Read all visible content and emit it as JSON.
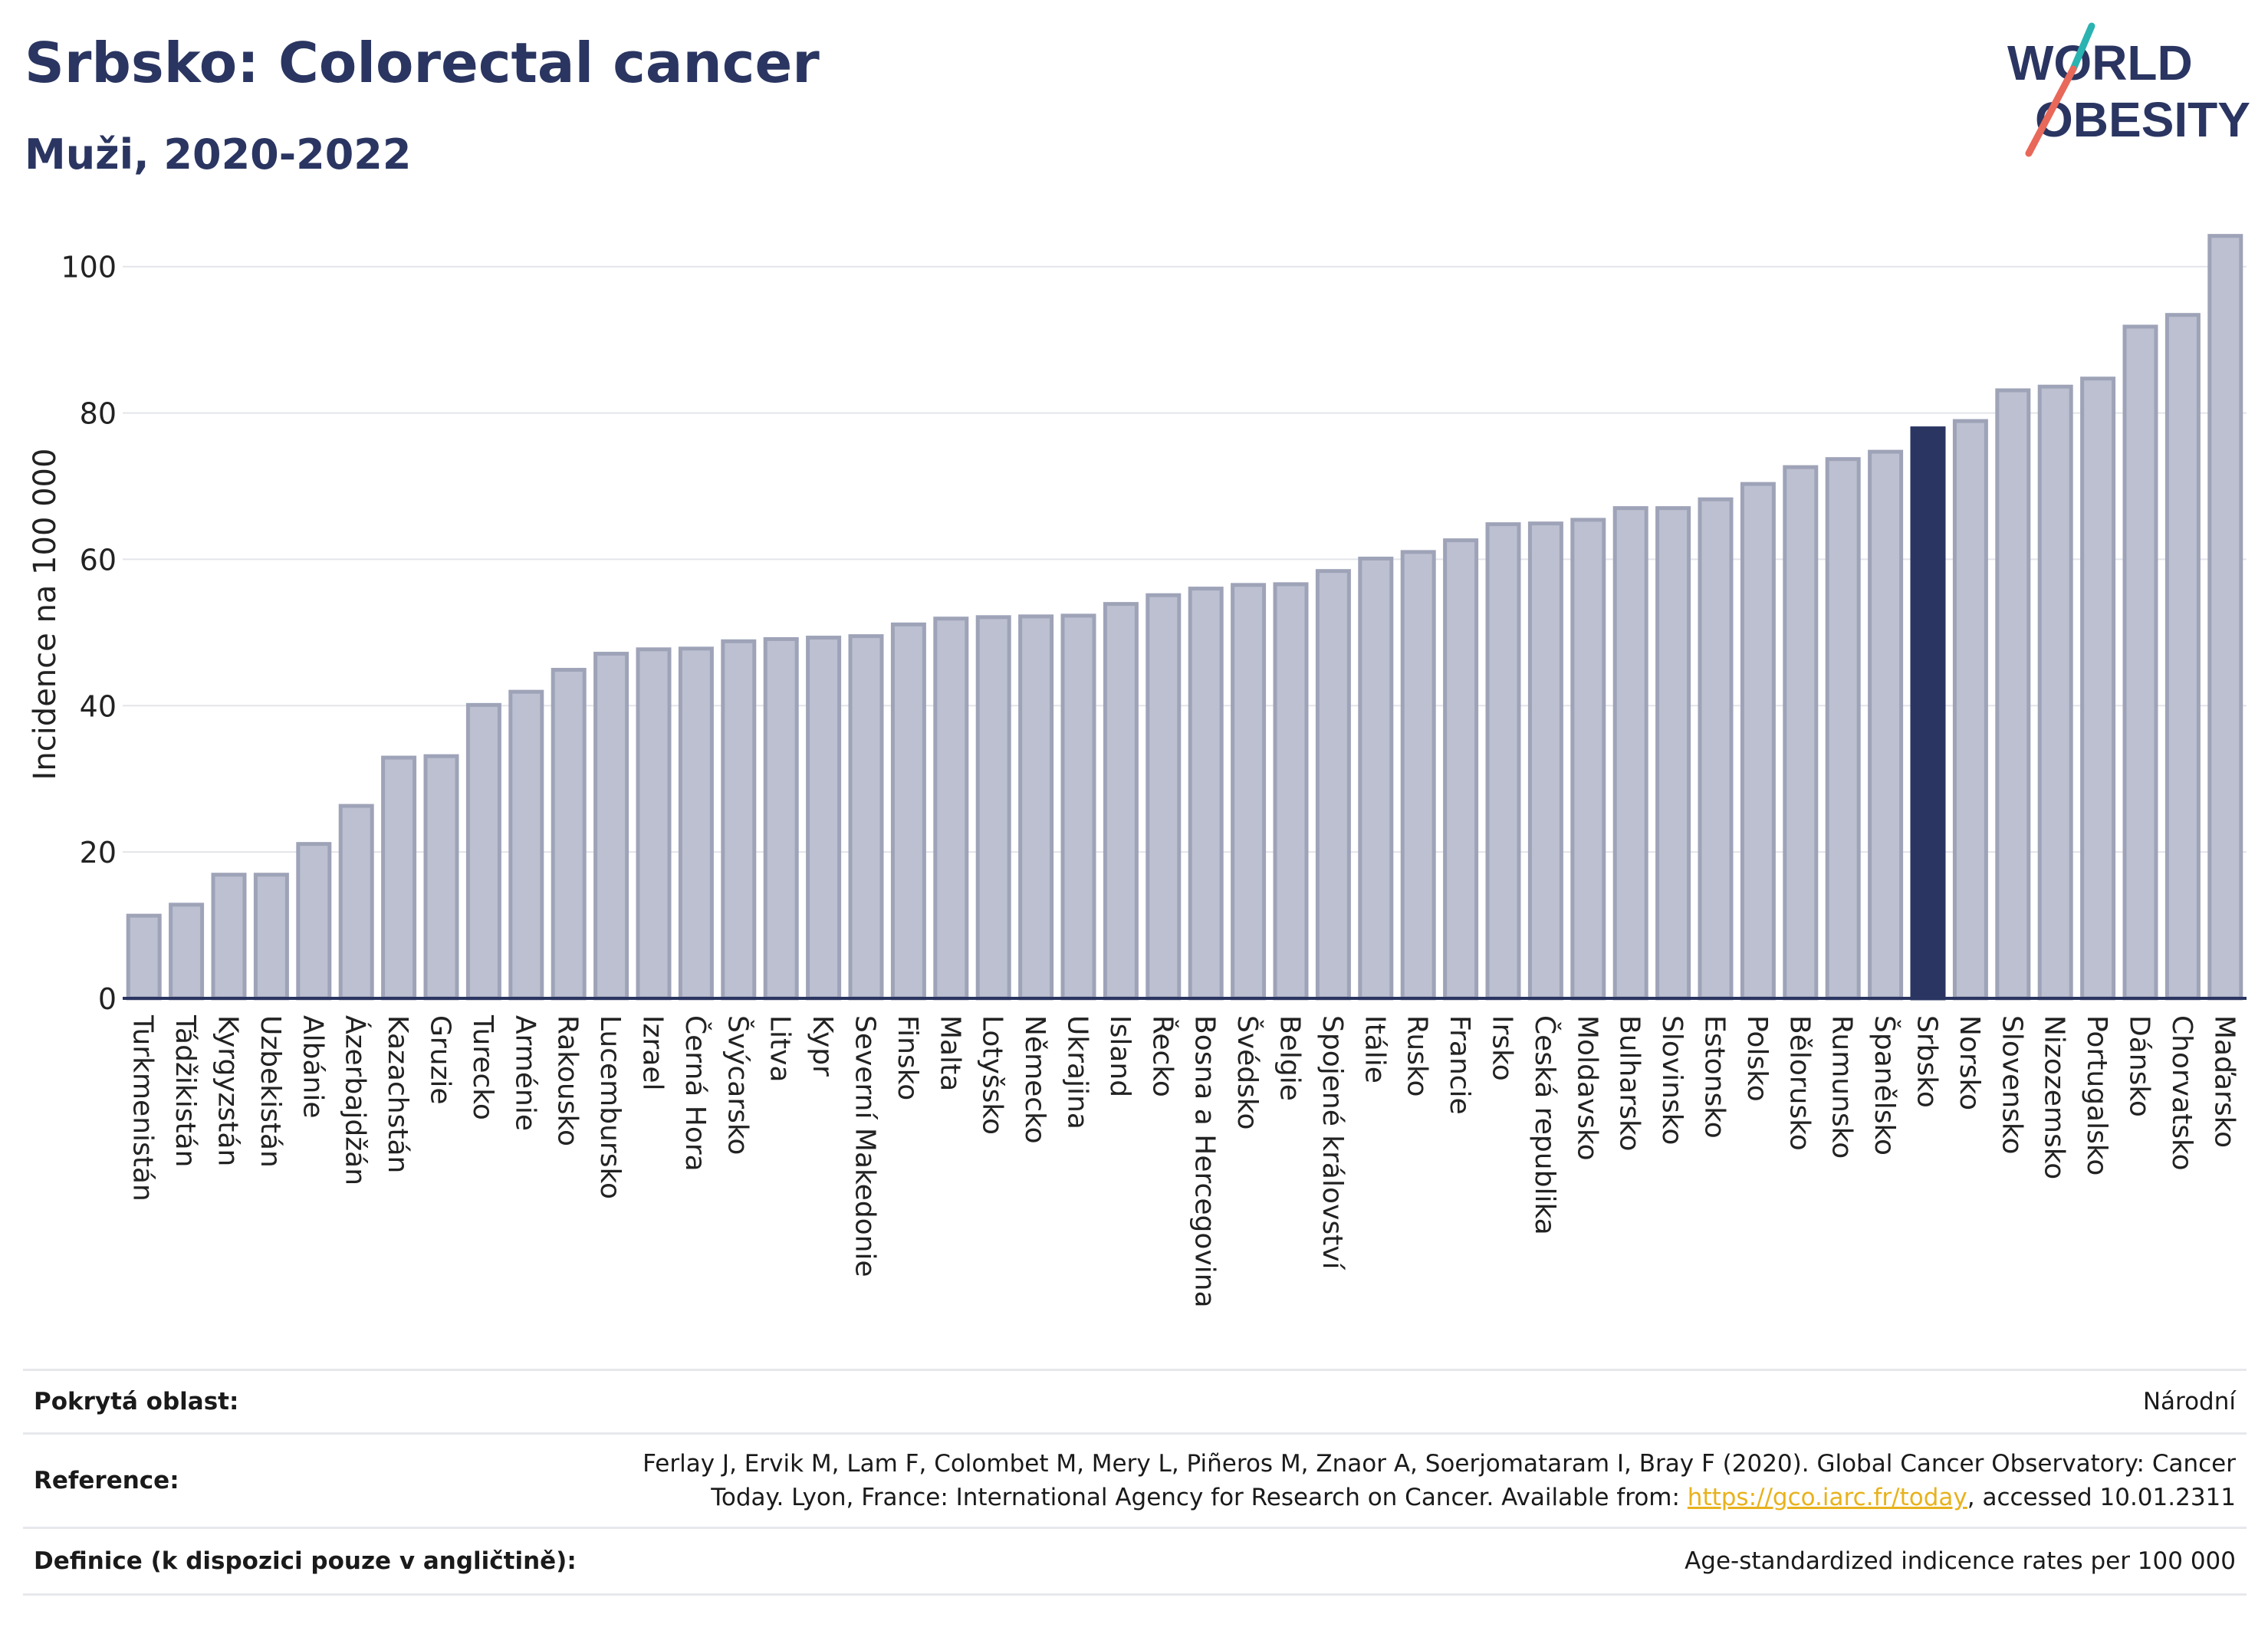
{
  "header": {
    "title": "Srbsko: Colorectal cancer",
    "subtitle": "Muži, 2020-2022"
  },
  "logo": {
    "line1": "WORLD",
    "line2": "OBESITY"
  },
  "colors": {
    "bar": "#bcc0d0",
    "bar_border": "#9ea3b8",
    "highlight": "#2a3561",
    "grid": "#e3e5ea",
    "logo_teal": "#2ab3b1",
    "logo_red": "#e8685a"
  },
  "chart_data": {
    "type": "bar",
    "ylabel": "Incidence na 100 000",
    "ylim": [
      0,
      105
    ],
    "yticks": [
      0,
      20,
      40,
      60,
      80,
      100
    ],
    "grid": true,
    "highlight": "Srbsko",
    "categories": [
      "Turkmenistán",
      "Tádžikistán",
      "Kyrgyzstán",
      "Uzbekistán",
      "Albánie",
      "Ázerbajdžán",
      "Kazachstán",
      "Gruzie",
      "Turecko",
      "Arménie",
      "Rakousko",
      "Lucembursko",
      "Izrael",
      "Černá Hora",
      "Švýcarsko",
      "Litva",
      "Kypr",
      "Severní Makedonie",
      "Finsko",
      "Malta",
      "Lotyšsko",
      "Německo",
      "Ukrajina",
      "Island",
      "Řecko",
      "Bosna a Hercegovina",
      "Švédsko",
      "Belgie",
      "Spojené království",
      "Itálie",
      "Rusko",
      "Francie",
      "Irsko",
      "Česká republika",
      "Moldavsko",
      "Bulharsko",
      "Slovinsko",
      "Estonsko",
      "Polsko",
      "Bělorusko",
      "Rumunsko",
      "Španělsko",
      "Srbsko",
      "Norsko",
      "Slovensko",
      "Nizozemsko",
      "Portugalsko",
      "Dánsko",
      "Chorvatsko",
      "Maďarsko"
    ],
    "values": [
      11.3,
      12.8,
      16.9,
      16.9,
      21.1,
      26.3,
      32.9,
      33.1,
      40.1,
      41.9,
      44.9,
      47.1,
      47.7,
      47.8,
      48.8,
      49.1,
      49.3,
      49.5,
      51.1,
      51.9,
      52.1,
      52.2,
      52.3,
      53.9,
      55.1,
      56.0,
      56.5,
      56.6,
      58.4,
      60.1,
      61.0,
      62.6,
      64.8,
      64.9,
      65.4,
      67.0,
      67.0,
      68.2,
      70.3,
      72.6,
      73.7,
      74.7,
      77.9,
      78.9,
      83.1,
      83.6,
      84.7,
      91.8,
      93.4,
      104.2
    ]
  },
  "footer": {
    "coverage_label": "Pokrytá oblast:",
    "coverage_value": "Národní",
    "reference_label": "Reference:",
    "reference_line1": "Ferlay J, Ervik M, Lam F, Colombet M, Mery L, Piñeros M, Znaor A, Soerjomataram I, Bray F (2020). Global Cancer Observatory: Cancer",
    "reference_line2_pre": "Today. Lyon, France: International Agency for Research on Cancer. Available from: ",
    "reference_link": "https://gco.iarc.fr/today",
    "reference_line2_post": ", accessed 10.01.2311",
    "definition_label": "Definice (k dispozici pouze v angličtině):",
    "definition_value": "Age-standardized indicence rates per 100 000"
  }
}
